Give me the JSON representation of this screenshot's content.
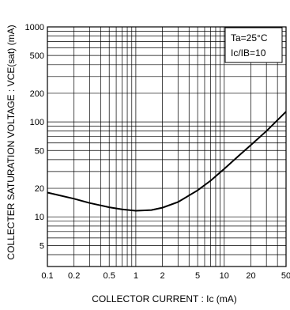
{
  "chart_data": {
    "type": "line",
    "xscale": "log",
    "yscale": "log",
    "xlim": [
      0.1,
      50
    ],
    "ylim": [
      3,
      1000
    ],
    "grid": true,
    "xlabel": "COLLECTOR  CURRENT : Ic (mA)",
    "ylabel": "COLLECTER SATURATION VOLTAGE : VCE(sat) (mA)",
    "xtick_labels": [
      "0.1",
      "0.2",
      "0.5",
      "1",
      "2",
      "5",
      "10",
      "20",
      "50"
    ],
    "xtick_values": [
      0.1,
      0.2,
      0.5,
      1,
      2,
      5,
      10,
      20,
      50
    ],
    "ytick_labels": [
      "1000",
      "500",
      "200",
      "100",
      "50",
      "20",
      "10",
      "5"
    ],
    "ytick_values": [
      1000,
      500,
      200,
      100,
      50,
      20,
      10,
      5
    ],
    "annotations": [
      "Ta=25°C",
      "Ic/IB=10"
    ],
    "series": [
      {
        "x": [
          0.1,
          0.2,
          0.3,
          0.5,
          0.7,
          1,
          1.5,
          2,
          3,
          5,
          7,
          10,
          15,
          20,
          30,
          50
        ],
        "values": [
          18,
          15.5,
          14,
          12.6,
          12,
          11.6,
          11.8,
          12.5,
          14.3,
          19,
          24,
          32,
          45,
          57,
          80,
          128
        ]
      }
    ]
  }
}
